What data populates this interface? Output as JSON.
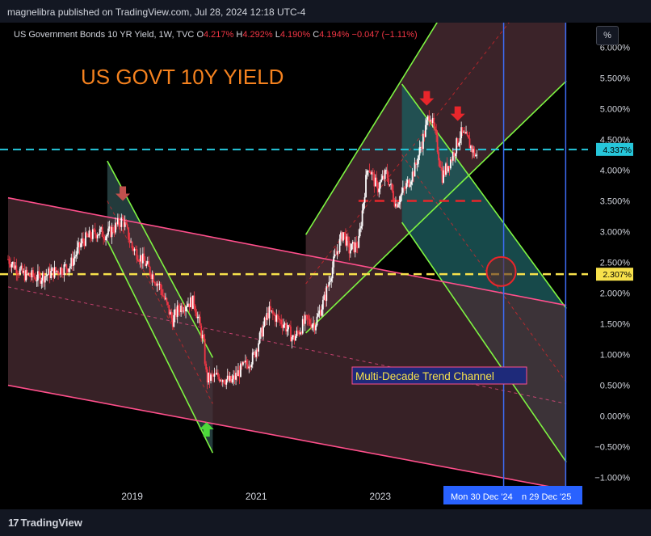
{
  "header": {
    "publisher": "magnelibra published on TradingView.com, Jul 28, 2024 12:18 UTC-4"
  },
  "legend": {
    "symbol": "US Government Bonds 10 YR Yield, 1W, TVC",
    "o_label": "O",
    "o_value": "4.217%",
    "h_label": "H",
    "h_value": "4.292%",
    "l_label": "L",
    "l_value": "4.190%",
    "c_label": "C",
    "c_value": "4.194%",
    "change": "−0.047 (−1.11%)"
  },
  "toolbar": {
    "percent_label": "%"
  },
  "footer": {
    "brand": "TradingView",
    "mark": "17"
  },
  "colors": {
    "background": "#000000",
    "bull_candle": "#ffffff",
    "bear_candle": "#f23645",
    "channel_green": "#7ef542",
    "channel_pink": "#ff4f8b",
    "fill_teal": "#1d5b5c",
    "fill_rose": "#4a2c33",
    "title_orange": "#f5821f",
    "price_line_cyan": "#26c6da",
    "level_yellow": "#f7e14b",
    "vline_blue": "#3d6cf5",
    "arrow_red": "#e8262b",
    "arrow_green": "#4cd93a"
  },
  "chart_data": {
    "type": "candlestick",
    "title": "US GOVT 10Y YIELD",
    "annotation": "Multi-Decade Trend Channel",
    "x_ticks": [
      "2019",
      "2021",
      "2023"
    ],
    "y_ticks": [
      "6.000%",
      "5.500%",
      "5.000%",
      "4.500%",
      "4.000%",
      "3.500%",
      "3.000%",
      "2.500%",
      "2.000%",
      "1.500%",
      "1.000%",
      "0.500%",
      "0.000%",
      "−0.500%",
      "−1.000%"
    ],
    "ylim": [
      -1.15,
      6.4
    ],
    "xlim": [
      2017.0,
      2026.35
    ],
    "current_price_label": "4.337%",
    "current_price": 4.337,
    "level_label": "2.307%",
    "level": 2.307,
    "time_labels": [
      "Mon 30 Dec '24",
      "n 29 Dec '25"
    ],
    "vertical_lines": [
      2024.99,
      2025.99
    ],
    "price_path": [
      [
        2017.0,
        2.55
      ],
      [
        2017.25,
        2.3
      ],
      [
        2017.5,
        2.25
      ],
      [
        2017.75,
        2.35
      ],
      [
        2018.0,
        2.45
      ],
      [
        2018.2,
        2.85
      ],
      [
        2018.45,
        3.0
      ],
      [
        2018.6,
        2.95
      ],
      [
        2018.85,
        3.2
      ],
      [
        2019.0,
        2.75
      ],
      [
        2019.2,
        2.5
      ],
      [
        2019.45,
        2.1
      ],
      [
        2019.65,
        1.55
      ],
      [
        2019.75,
        1.75
      ],
      [
        2019.9,
        1.85
      ],
      [
        2020.0,
        1.85
      ],
      [
        2020.15,
        1.2
      ],
      [
        2020.2,
        0.6
      ],
      [
        2020.4,
        0.65
      ],
      [
        2020.6,
        0.55
      ],
      [
        2020.75,
        0.75
      ],
      [
        2020.95,
        0.95
      ],
      [
        2021.1,
        1.4
      ],
      [
        2021.2,
        1.7
      ],
      [
        2021.45,
        1.5
      ],
      [
        2021.6,
        1.25
      ],
      [
        2021.8,
        1.55
      ],
      [
        2021.95,
        1.5
      ],
      [
        2022.1,
        1.9
      ],
      [
        2022.25,
        2.5
      ],
      [
        2022.4,
        3.0
      ],
      [
        2022.5,
        2.7
      ],
      [
        2022.65,
        2.8
      ],
      [
        2022.8,
        4.1
      ],
      [
        2022.95,
        3.7
      ],
      [
        2023.1,
        3.95
      ],
      [
        2023.25,
        3.45
      ],
      [
        2023.4,
        3.7
      ],
      [
        2023.55,
        4.0
      ],
      [
        2023.7,
        4.55
      ],
      [
        2023.8,
        4.95
      ],
      [
        2023.9,
        4.5
      ],
      [
        2024.0,
        3.9
      ],
      [
        2024.15,
        4.2
      ],
      [
        2024.3,
        4.6
      ],
      [
        2024.4,
        4.5
      ],
      [
        2024.5,
        4.3
      ],
      [
        2024.57,
        4.194
      ]
    ],
    "channels": [
      {
        "name": "",
        "upper": [
          [
            2018.6,
            4.15
          ],
          [
            2020.3,
            0.95
          ]
        ],
        "lower": [
          [
            2018.6,
            2.85
          ],
          [
            2020.3,
            -0.6
          ]
        ],
        "mid": [
          [
            2018.6,
            3.5
          ],
          [
            2020.3,
            0.2
          ]
        ],
        "color": "green"
      },
      {
        "name": "",
        "upper": [
          [
            2021.8,
            2.95
          ],
          [
            2026.0,
            9.8
          ]
        ],
        "lower": [
          [
            2021.8,
            1.35
          ],
          [
            2026.0,
            5.45
          ]
        ],
        "mid": [
          [
            2021.8,
            2.15
          ],
          [
            2026.0,
            7.6
          ]
        ],
        "color": "green"
      },
      {
        "name": "",
        "upper": [
          [
            2023.35,
            5.4
          ],
          [
            2026.0,
            1.75
          ]
        ],
        "lower": [
          [
            2023.35,
            3.15
          ],
          [
            2026.0,
            -0.75
          ]
        ],
        "mid": [
          [
            2023.35,
            4.25
          ],
          [
            2026.0,
            0.55
          ]
        ],
        "color": "green"
      },
      {
        "name": "Multi-Decade Trend Channel",
        "upper": [
          [
            2017.0,
            3.55
          ],
          [
            2026.0,
            1.8
          ]
        ],
        "lower": [
          [
            2017.0,
            0.5
          ],
          [
            2026.0,
            -1.2
          ]
        ],
        "mid": [
          [
            2017.0,
            2.1
          ],
          [
            2026.0,
            0.2
          ]
        ],
        "color": "pink"
      }
    ],
    "dashed_level": {
      "value": 3.5,
      "from": 2022.65,
      "to": 2024.7
    },
    "arrows": [
      {
        "x": 2018.85,
        "y": 3.5,
        "dir": "down",
        "color": "red"
      },
      {
        "x": 2023.75,
        "y": 5.05,
        "dir": "down",
        "color": "red"
      },
      {
        "x": 2024.25,
        "y": 4.8,
        "dir": "down",
        "color": "red"
      },
      {
        "x": 2020.2,
        "y": -0.1,
        "dir": "up",
        "color": "green"
      }
    ],
    "circle": {
      "x": 2024.95,
      "y": 2.35
    }
  }
}
